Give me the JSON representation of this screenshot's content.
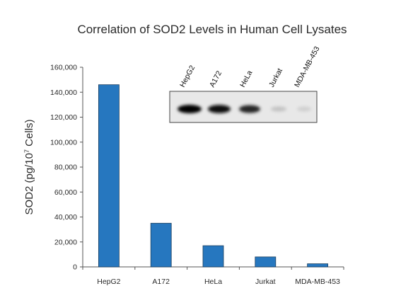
{
  "chart_data": {
    "type": "bar",
    "title": "Correlation of SOD2 Levels in Human Cell Lysates",
    "ylabel_main": "SOD2 (pg/10",
    "ylabel_sup": "7",
    "ylabel_tail": " Cells)",
    "xlabel": "",
    "categories": [
      "HepG2",
      "A172",
      "HeLa",
      "Jurkat",
      "MDA-MB-453"
    ],
    "values": [
      146000,
      35000,
      17000,
      8000,
      2500
    ],
    "ylim": [
      0,
      160000
    ],
    "yticks": [
      0,
      20000,
      40000,
      60000,
      80000,
      100000,
      120000,
      140000,
      160000
    ],
    "ytick_labels": [
      "0",
      "20,000",
      "40,000",
      "60,000",
      "80,000",
      "100,000",
      "120,000",
      "140,000",
      "160,000"
    ],
    "bar_color": "#2677bf",
    "grid": false,
    "legend": "none"
  },
  "inset": {
    "type": "western-blot",
    "lane_labels": [
      "HepG2",
      "A172",
      "HeLa",
      "Jurkat",
      "MDA-MB-453"
    ],
    "band_intensity": [
      1.0,
      0.95,
      0.85,
      0.18,
      0.12
    ]
  }
}
